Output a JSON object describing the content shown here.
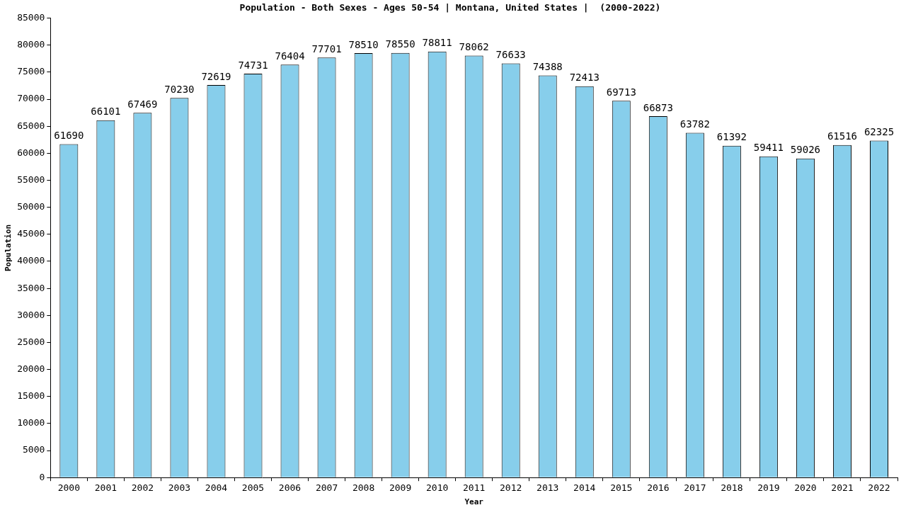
{
  "chart_data": {
    "type": "bar",
    "title": "Population - Both Sexes - Ages 50-54 | Montana, United States |  (2000-2022)",
    "x_label": "Year",
    "y_label": "Population",
    "categories": [
      "2000",
      "2001",
      "2002",
      "2003",
      "2004",
      "2005",
      "2006",
      "2007",
      "2008",
      "2009",
      "2010",
      "2011",
      "2012",
      "2013",
      "2014",
      "2015",
      "2016",
      "2017",
      "2018",
      "2019",
      "2020",
      "2021",
      "2022"
    ],
    "values": [
      61690,
      66101,
      67469,
      70230,
      72619,
      74731,
      76404,
      77701,
      78510,
      78550,
      78811,
      78062,
      76633,
      74388,
      72413,
      69713,
      66873,
      63782,
      61392,
      59411,
      59026,
      61516,
      62325
    ],
    "color": "#87ceeb",
    "ylim": [
      0,
      85000
    ],
    "yticks": [
      0,
      5000,
      10000,
      15000,
      20000,
      25000,
      30000,
      35000,
      40000,
      45000,
      50000,
      55000,
      60000,
      65000,
      70000,
      75000,
      80000,
      85000
    ],
    "grid": false,
    "data_labels": true
  }
}
